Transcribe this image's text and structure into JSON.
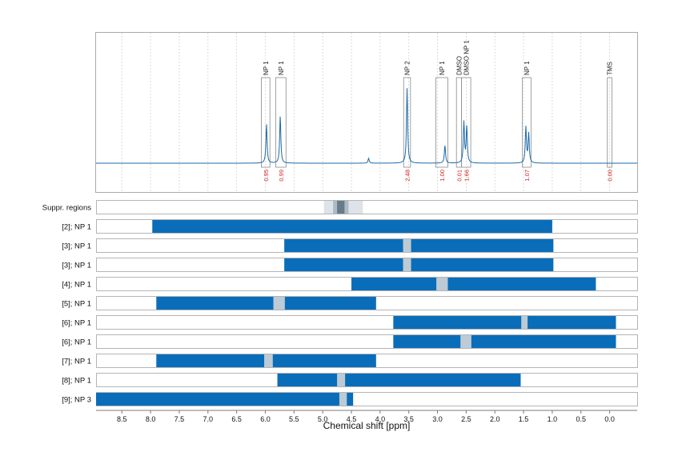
{
  "chart_data": {
    "type": "line",
    "xlabel": "Chemical shift [ppm]",
    "x_reversed": true,
    "xlim": [
      8.95,
      -0.48
    ],
    "x_ticks": [
      8.5,
      8.0,
      7.5,
      7.0,
      6.5,
      6.0,
      5.5,
      5.0,
      4.5,
      4.0,
      3.5,
      3.0,
      2.5,
      2.0,
      1.5,
      1.0,
      0.5,
      0.0
    ],
    "x_tick_labels": [
      "8.5",
      "8.0",
      "7.5",
      "7.0",
      "6.5",
      "6.0",
      "5.5",
      "5.0",
      "4.5",
      "4.0",
      "3.5",
      "3.0",
      "2.5",
      "2.0",
      "1.5",
      "1.0",
      "0.5",
      "0.0"
    ],
    "vertical_grid": "dotted",
    "spectrum_color": "#1a6aaa",
    "integral_label_color": "#d21e1e",
    "bar_color": "#0a6db9",
    "gap_color": "#bccbd6",
    "spectrum_peaks": [
      {
        "x": 5.98,
        "h": 0.48
      },
      {
        "x": 5.74,
        "h": 0.58
      },
      {
        "x": 4.2,
        "h": 0.06
      },
      {
        "x": 3.53,
        "h": 0.92
      },
      {
        "x": 2.87,
        "h": 0.22
      },
      {
        "x": 2.54,
        "h": 0.5
      },
      {
        "x": 2.49,
        "h": 0.44
      },
      {
        "x": 1.46,
        "h": 0.44
      },
      {
        "x": 1.41,
        "h": 0.36
      }
    ],
    "annotations": [
      {
        "label": "NP 1",
        "x_from": 6.07,
        "x_to": 5.92,
        "integral": "0.95"
      },
      {
        "label": "NP 1",
        "x_from": 5.82,
        "x_to": 5.64,
        "integral": "0.99"
      },
      {
        "label": "NP 2",
        "x_from": 3.59,
        "x_to": 3.47,
        "integral": "2.48"
      },
      {
        "label": "NP 1",
        "x_from": 3.03,
        "x_to": 2.82,
        "integral": "1.00"
      },
      {
        "label": "DMSO",
        "x_from": 2.67,
        "x_to": 2.58,
        "integral": "0.01"
      },
      {
        "label": "DMSO NP 1",
        "x_from": 2.58,
        "x_to": 2.42,
        "integral": "1.66"
      },
      {
        "label": "NP 1",
        "x_from": 1.52,
        "x_to": 1.37,
        "integral": "1.07"
      },
      {
        "label": "TMS",
        "x_from": 0.04,
        "x_to": -0.04,
        "integral": "0.00"
      }
    ],
    "suppressed_regions": {
      "label": "Suppr. regions",
      "regions": [
        {
          "x_from": 4.98,
          "x_to": 4.3,
          "shade": "light"
        },
        {
          "x_from": 4.82,
          "x_to": 4.55,
          "shade": "mid"
        },
        {
          "x_from": 4.75,
          "x_to": 4.62,
          "shade": "dark"
        }
      ]
    },
    "ranges": [
      {
        "label": "[2]; NP 1",
        "x_from": 7.97,
        "x_to": 1.0,
        "gaps": []
      },
      {
        "label": "[3]; NP 1",
        "x_from": 5.67,
        "x_to": 0.98,
        "gaps": [
          [
            3.6,
            3.46
          ]
        ]
      },
      {
        "label": "[3]; NP 1",
        "x_from": 5.67,
        "x_to": 0.98,
        "gaps": [
          [
            3.6,
            3.46
          ]
        ]
      },
      {
        "label": "[4]; NP 1",
        "x_from": 4.5,
        "x_to": 0.24,
        "gaps": [
          [
            3.02,
            2.82
          ]
        ]
      },
      {
        "label": "[5]; NP 1",
        "x_from": 7.9,
        "x_to": 4.07,
        "gaps": [
          [
            5.86,
            5.66
          ]
        ]
      },
      {
        "label": "[6]; NP 1",
        "x_from": 3.77,
        "x_to": -0.11,
        "gaps": [
          [
            1.54,
            1.43
          ]
        ]
      },
      {
        "label": "[6]; NP 1",
        "x_from": 3.77,
        "x_to": -0.11,
        "gaps": [
          [
            2.6,
            2.41
          ]
        ]
      },
      {
        "label": "[7]; NP 1",
        "x_from": 7.9,
        "x_to": 4.07,
        "gaps": [
          [
            6.02,
            5.87
          ]
        ]
      },
      {
        "label": "[8]; NP 1",
        "x_from": 5.79,
        "x_to": 1.55,
        "gaps": [
          [
            4.75,
            4.61
          ]
        ]
      },
      {
        "label": "[9]; NP 3",
        "x_from": 8.95,
        "x_to": 4.47,
        "gaps": [
          [
            4.71,
            4.58
          ]
        ]
      }
    ]
  }
}
